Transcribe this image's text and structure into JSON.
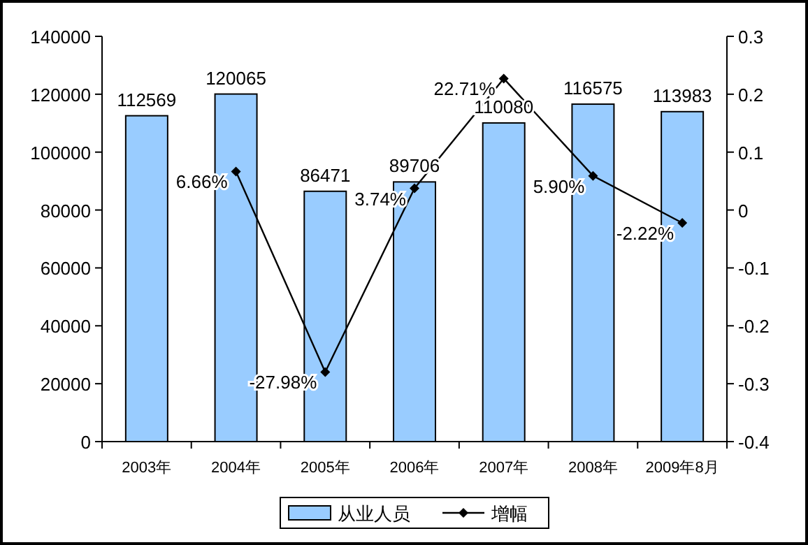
{
  "chart_data": {
    "type": "bar",
    "categories": [
      "2003年",
      "2004年",
      "2005年",
      "2006年",
      "2007年",
      "2008年",
      "2009年8月"
    ],
    "series": [
      {
        "name": "从业人员",
        "color": "#99ccff",
        "values": [
          112569,
          120065,
          86471,
          89706,
          110080,
          116575,
          113983
        ],
        "value_labels": [
          "112569",
          "120065",
          "86471",
          "89706",
          "110080",
          "116575",
          "113983"
        ]
      },
      {
        "name": "增幅",
        "type": "line",
        "axis": "y2",
        "color": "#000000",
        "values": [
          null,
          0.0666,
          -0.2798,
          0.0374,
          0.2271,
          0.059,
          -0.0222
        ],
        "value_labels": [
          null,
          "6.66%",
          "-27.98%",
          "3.74%",
          "22.71%",
          "5.90%",
          "-2.22%"
        ]
      }
    ],
    "ylim": [
      0,
      140000
    ],
    "yticks": [
      0,
      20000,
      40000,
      60000,
      80000,
      100000,
      120000,
      140000
    ],
    "y2lim": [
      -0.4,
      0.3
    ],
    "y2ticks": [
      -0.4,
      -0.3,
      -0.2,
      -0.1,
      0,
      0.1,
      0.2,
      0.3
    ],
    "marker": "diamond",
    "legend": "bottom",
    "grid": false
  }
}
